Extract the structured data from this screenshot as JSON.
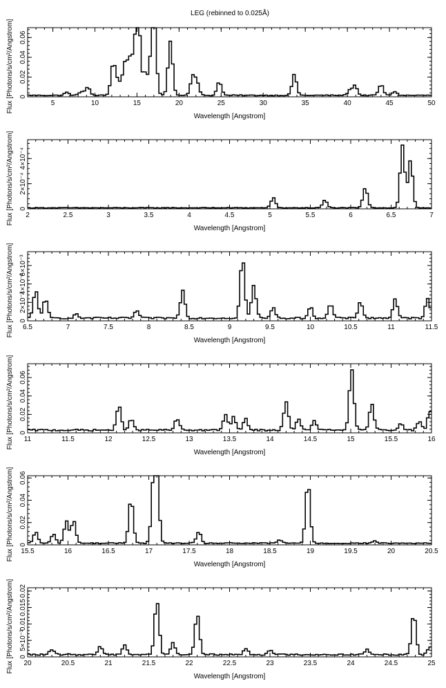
{
  "title": "LEG (rebinned to 0.025Å)",
  "chart_data": [
    {
      "type": "line",
      "xlabel": "Wavelength [Angstrom]",
      "ylabel": "Flux [Photons/s/cm²/Angstrom]",
      "xlim": [
        2,
        50
      ],
      "ylim": [
        0,
        0.07
      ],
      "xticks": [
        5,
        10,
        15,
        20,
        25,
        30,
        35,
        40,
        45,
        50
      ],
      "xticklabels": [
        "5",
        "10",
        "15",
        "20",
        "25",
        "30",
        "35",
        "40",
        "45",
        "50"
      ],
      "yticks": [
        0,
        0.02,
        0.04,
        0.06
      ],
      "yticklabels": [
        "0",
        "0.02",
        "0.04",
        "0.06"
      ],
      "background": 0.0015,
      "lines": [
        [
          6.65,
          0.003
        ],
        [
          8.4,
          0.004
        ],
        [
          9.15,
          0.008
        ],
        [
          12.13,
          0.026
        ],
        [
          12.4,
          0.01
        ],
        [
          12.85,
          0.01
        ],
        [
          13.45,
          0.016
        ],
        [
          13.7,
          0.02
        ],
        [
          14.2,
          0.03
        ],
        [
          14.55,
          0.014
        ],
        [
          15.01,
          0.068
        ],
        [
          15.26,
          0.03
        ],
        [
          16.0,
          0.022
        ],
        [
          16.78,
          0.04
        ],
        [
          17.07,
          0.055
        ],
        [
          18.97,
          0.055
        ],
        [
          21.6,
          0.018
        ],
        [
          22.1,
          0.013
        ],
        [
          24.78,
          0.014
        ],
        [
          33.7,
          0.021
        ],
        [
          40.3,
          0.005
        ],
        [
          40.9,
          0.01
        ],
        [
          44.0,
          0.011
        ],
        [
          45.6,
          0.004
        ]
      ]
    },
    {
      "type": "line",
      "xlabel": "Wavelength [Angstrom]",
      "ylabel": "Flux [Photons/s/cm²/Angstrom]",
      "xlim": [
        2,
        7
      ],
      "ylim": [
        0,
        0.00055
      ],
      "xticks": [
        2,
        2.5,
        3,
        3.5,
        4,
        4.5,
        5,
        5.5,
        6,
        6.5,
        7
      ],
      "xticklabels": [
        "2",
        "2.5",
        "3",
        "3.5",
        "4",
        "4.5",
        "5",
        "5.5",
        "6",
        "6.5",
        "7"
      ],
      "yticks": [
        0,
        0.0002,
        0.0004
      ],
      "yticklabels": [
        "0",
        "2×10⁻⁴",
        "4×10⁻⁴"
      ],
      "background": 8e-06,
      "lines": [
        [
          5.04,
          8e-05
        ],
        [
          5.68,
          6e-05
        ],
        [
          6.18,
          0.00016
        ],
        [
          6.64,
          0.0005
        ],
        [
          6.74,
          0.00038
        ]
      ]
    },
    {
      "type": "line",
      "xlabel": "Wavelength [Angstrom]",
      "ylabel": "Flux [Photons/s/cm²/Angstrom]",
      "xlim": [
        6.5,
        11.5
      ],
      "ylim": [
        0,
        0.0075
      ],
      "xticks": [
        6.5,
        7,
        7.5,
        8,
        8.5,
        9,
        9.5,
        10,
        10.5,
        11,
        11.5
      ],
      "xticklabels": [
        "6.5",
        "7",
        "7.5",
        "8",
        "8.5",
        "9",
        "9.5",
        "10",
        "10.5",
        "11",
        "11.5"
      ],
      "yticks": [
        0,
        0.002,
        0.004,
        0.006
      ],
      "yticklabels": [
        "0",
        "2×10⁻³",
        "4×10⁻³",
        "6×10⁻³"
      ],
      "background": 0.0003,
      "lines": [
        [
          6.6,
          0.003
        ],
        [
          6.72,
          0.002
        ],
        [
          7.1,
          0.0004
        ],
        [
          7.85,
          0.0008
        ],
        [
          8.42,
          0.003
        ],
        [
          9.16,
          0.0065
        ],
        [
          9.3,
          0.0035
        ],
        [
          9.54,
          0.0011
        ],
        [
          10.0,
          0.0012
        ],
        [
          10.25,
          0.0015
        ],
        [
          10.62,
          0.0018
        ],
        [
          11.05,
          0.002
        ],
        [
          11.45,
          0.0022
        ]
      ]
    },
    {
      "type": "line",
      "xlabel": "Wavelength [Angstrom]",
      "ylabel": "Flux [Photons/s/cm²/Angstrom]",
      "xlim": [
        11,
        16
      ],
      "ylim": [
        0,
        0.075
      ],
      "xticks": [
        11,
        11.5,
        12,
        12.5,
        13,
        13.5,
        14,
        14.5,
        15,
        15.5,
        16
      ],
      "xticklabels": [
        "11",
        "11.5",
        "12",
        "12.5",
        "13",
        "13.5",
        "14",
        "14.5",
        "15",
        "15.5",
        "16"
      ],
      "yticks": [
        0,
        0.02,
        0.04,
        0.06
      ],
      "yticklabels": [
        "0",
        "0.02",
        "0.04",
        "0.06"
      ],
      "background": 0.003,
      "lines": [
        [
          12.13,
          0.026
        ],
        [
          12.28,
          0.012
        ],
        [
          12.85,
          0.012
        ],
        [
          13.45,
          0.016
        ],
        [
          13.55,
          0.014
        ],
        [
          13.7,
          0.012
        ],
        [
          14.2,
          0.03
        ],
        [
          14.35,
          0.012
        ],
        [
          14.55,
          0.01
        ],
        [
          15.01,
          0.066
        ],
        [
          15.26,
          0.028
        ],
        [
          15.62,
          0.008
        ],
        [
          15.85,
          0.009
        ],
        [
          15.98,
          0.02
        ]
      ]
    },
    {
      "type": "line",
      "xlabel": "Wavelength [Angstrom]",
      "ylabel": "Flux [Photons/s/cm²/Angstrom]",
      "xlim": [
        15.5,
        20.5
      ],
      "ylim": [
        0,
        0.062
      ],
      "xticks": [
        15.5,
        16,
        16.5,
        17,
        17.5,
        18,
        18.5,
        19,
        19.5,
        20,
        20.5
      ],
      "xticklabels": [
        "15.5",
        "16",
        "16.5",
        "17",
        "17.5",
        "18",
        "18.5",
        "19",
        "19.5",
        "20",
        "20.5"
      ],
      "yticks": [
        0,
        0.02,
        0.04,
        0.06
      ],
      "yticklabels": [
        "0",
        "0.02",
        "0.04",
        "0.06"
      ],
      "background": 0.0015,
      "lines": [
        [
          15.6,
          0.01
        ],
        [
          15.82,
          0.008
        ],
        [
          15.98,
          0.02
        ],
        [
          16.07,
          0.02
        ],
        [
          16.78,
          0.04
        ],
        [
          17.06,
          0.05
        ],
        [
          17.1,
          0.055
        ],
        [
          17.62,
          0.01
        ],
        [
          18.62,
          0.003
        ],
        [
          18.97,
          0.055
        ],
        [
          19.8,
          0.002
        ]
      ]
    },
    {
      "type": "line",
      "xlabel": "Wavelength [Angstrom]",
      "ylabel": "Flux [Photons/s/cm²/Angstrom]",
      "xlim": [
        20,
        25
      ],
      "ylim": [
        0,
        0.021
      ],
      "xticks": [
        20,
        20.5,
        21,
        21.5,
        22,
        22.5,
        23,
        23.5,
        24,
        24.5,
        25
      ],
      "xticklabels": [
        "20",
        "20.5",
        "21",
        "21.5",
        "22",
        "22.5",
        "23",
        "23.5",
        "24",
        "24.5",
        "25"
      ],
      "yticks": [
        0,
        0.005,
        0.01,
        0.015,
        0.02
      ],
      "yticklabels": [
        "0",
        "5×10⁻³",
        "0.01",
        "0.015",
        "0.02"
      ],
      "background": 0.0007,
      "lines": [
        [
          20.3,
          0.0015
        ],
        [
          20.9,
          0.0025
        ],
        [
          21.2,
          0.003
        ],
        [
          21.6,
          0.0165
        ],
        [
          21.8,
          0.0035
        ],
        [
          22.1,
          0.0125
        ],
        [
          22.7,
          0.0018
        ],
        [
          23.0,
          0.0015
        ],
        [
          24.2,
          0.0015
        ],
        [
          24.78,
          0.0125
        ],
        [
          24.98,
          0.0025
        ]
      ]
    }
  ]
}
